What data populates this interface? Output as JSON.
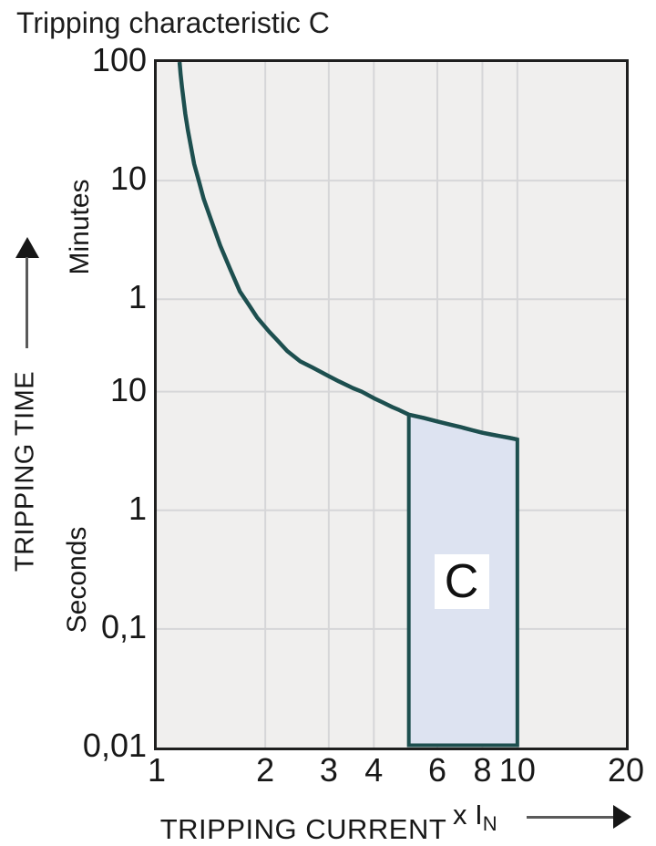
{
  "colors": {
    "curve": "#1d4f4f",
    "region_fill": "#dde3f1",
    "plot_background": "#f0efee",
    "grid": "#d6d6d8",
    "plot_border": "#1f1f1f",
    "text": "#181818",
    "arrow": "#161616",
    "region_label_background": "#ffffff"
  },
  "chart_data": {
    "type": "line",
    "title": "Tripping characteristic C",
    "x_scale": "log",
    "y_scale": "log",
    "grid": true,
    "x_axis": {
      "axis_label": "TRIPPING CURRENT",
      "multiplier_label": "x I",
      "multiplier_subscript": "N",
      "range": [
        1,
        20
      ],
      "tick_values": [
        1,
        2,
        3,
        4,
        6,
        8,
        10,
        20
      ],
      "tick_labels": [
        "1",
        "2",
        "3",
        "4",
        "6",
        "8",
        "10",
        "20"
      ],
      "gridline_values": [
        2,
        3,
        4,
        6,
        8,
        10
      ]
    },
    "y_axis": {
      "axis_label": "TRIPPING TIME",
      "unit_top": "Minutes",
      "unit_bottom": "Seconds",
      "range_seconds": [
        0.01,
        6000
      ],
      "tick_values_seconds": [
        6000,
        600,
        60,
        10,
        1,
        0.1,
        0.01
      ],
      "tick_labels": [
        "100",
        "10",
        "1",
        "10",
        "1",
        "0,1",
        "0,01"
      ],
      "gridline_values_seconds": [
        600,
        60,
        10,
        1,
        0.1
      ]
    },
    "series": [
      {
        "name": "C tripping curve",
        "x_unit": "multiple of rated current In",
        "y_unit": "seconds",
        "points": [
          [
            1.157,
            6000
          ],
          [
            1.165,
            4700
          ],
          [
            1.175,
            3700
          ],
          [
            1.19,
            2700
          ],
          [
            1.2,
            2200
          ],
          [
            1.22,
            1600
          ],
          [
            1.27,
            830
          ],
          [
            1.31,
            590
          ],
          [
            1.35,
            420
          ],
          [
            1.42,
            272
          ],
          [
            1.5,
            170
          ],
          [
            1.6,
            107
          ],
          [
            1.7,
            70
          ],
          [
            1.8,
            54
          ],
          [
            1.9,
            42
          ],
          [
            2.05,
            32
          ],
          [
            2.15,
            27.5
          ],
          [
            2.3,
            22
          ],
          [
            2.5,
            18
          ],
          [
            2.7,
            16
          ],
          [
            3,
            13.5
          ],
          [
            3.2,
            12.2
          ],
          [
            3.5,
            10.7
          ],
          [
            3.7,
            10
          ],
          [
            4,
            8.8
          ],
          [
            4.2,
            8.2
          ],
          [
            4.5,
            7.4
          ],
          [
            4.7,
            7
          ],
          [
            5,
            6.4
          ],
          [
            5.5,
            6.0
          ],
          [
            6,
            5.6
          ],
          [
            6.5,
            5.28
          ],
          [
            7,
            5.0
          ],
          [
            7.5,
            4.73
          ],
          [
            8,
            4.5
          ],
          [
            8.5,
            4.34
          ],
          [
            9,
            4.2
          ],
          [
            9.5,
            4.08
          ],
          [
            10,
            3.95
          ]
        ]
      }
    ],
    "region": {
      "label": "C",
      "x_from": 5,
      "x_to": 10,
      "bottom_seconds": 0.01,
      "top_follows_curve": true,
      "label_position": {
        "x_multiple": 7,
        "t_seconds": 0.25
      }
    }
  }
}
